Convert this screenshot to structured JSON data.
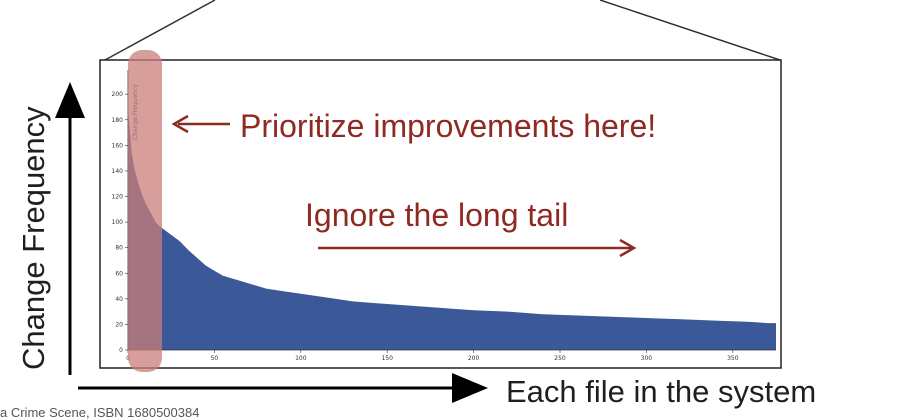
{
  "chart_data": {
    "type": "area",
    "ylabel": "Change Frequency",
    "inner_ylabel": "Change Frequency",
    "xlabel": "Each file in the system",
    "x_ticks": [
      0,
      50,
      100,
      150,
      200,
      250,
      300,
      350
    ],
    "y_ticks": [
      0,
      20,
      40,
      60,
      80,
      100,
      120,
      140,
      160,
      180,
      200
    ],
    "xlim": [
      0,
      375
    ],
    "ylim": [
      0,
      215
    ],
    "grid": false,
    "series": [
      {
        "x": [
          0,
          2,
          4,
          6,
          8,
          10,
          12,
          14,
          16,
          18,
          20,
          25,
          30,
          35,
          40,
          45,
          50,
          55,
          60,
          65,
          70,
          75,
          80,
          90,
          100,
          110,
          120,
          130,
          140,
          150,
          160,
          170,
          180,
          200,
          220,
          240,
          260,
          280,
          300,
          320,
          340,
          360,
          370,
          375
        ],
        "y": [
          190,
          155,
          140,
          130,
          122,
          115,
          110,
          105,
          100,
          97,
          95,
          90,
          85,
          78,
          72,
          66,
          62,
          58,
          56,
          54,
          52,
          50,
          48,
          46,
          44,
          42,
          40,
          38,
          37,
          36,
          35,
          34,
          33,
          31,
          30,
          28,
          27,
          26,
          25,
          24,
          23,
          22,
          21,
          21
        ]
      }
    ],
    "color": "#3b5998",
    "highlight_color": "#c97d7a",
    "annotation_color": "#8e2a22",
    "annotations": [
      "Prioritize improvements here!",
      "Ignore the long tail"
    ]
  },
  "footer": {
    "text": "a Crime Scene, ISBN 1680500384"
  }
}
